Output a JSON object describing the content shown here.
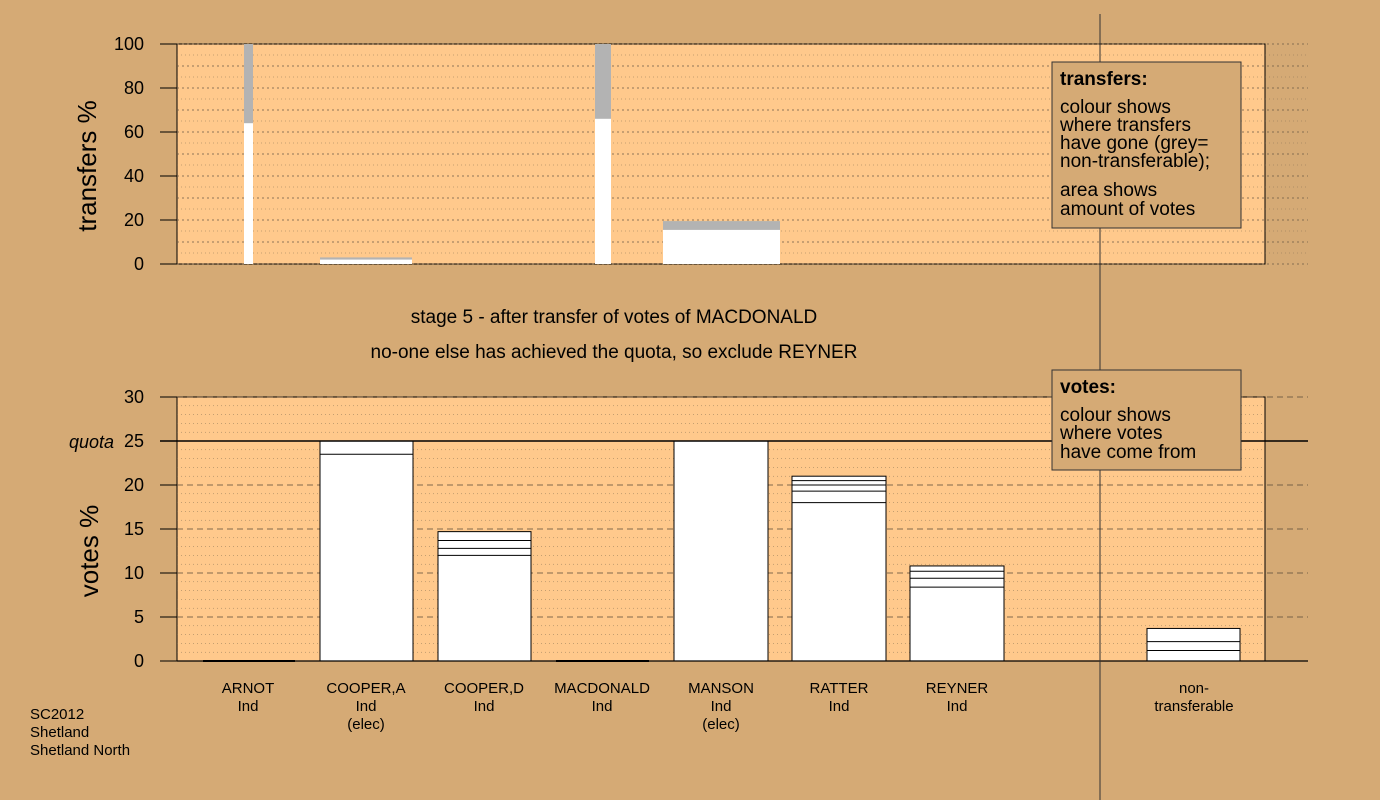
{
  "chart_data": [
    {
      "type": "bar",
      "panel": "transfers",
      "ylabel": "transfers %",
      "ylim": [
        0,
        100
      ],
      "yticks": [
        0,
        20,
        40,
        60,
        80,
        100
      ],
      "bars": [
        {
          "candidate": "ARNOT",
          "total": 100,
          "transferable": 64
        },
        {
          "candidate": "COOPER,A",
          "total": 3,
          "transferable": 2
        },
        {
          "candidate": "MACDONALD",
          "total": 100,
          "transferable": 66
        },
        {
          "candidate": "MANSON",
          "total": 19.5,
          "transferable": 15.5
        }
      ],
      "legend": {
        "title": "transfers:",
        "lines_a": [
          "colour shows",
          "where transfers",
          "have gone (grey=",
          "non-transferable);"
        ],
        "lines_b": [
          "area shows",
          "amount of votes"
        ]
      }
    },
    {
      "type": "bar",
      "panel": "votes",
      "ylabel": "votes %",
      "ylim": [
        0,
        30
      ],
      "yticks": [
        0,
        5,
        10,
        15,
        20,
        25,
        30
      ],
      "quota": 25,
      "quota_label": "quota",
      "candidates": [
        {
          "name": "ARNOT",
          "party": "Ind",
          "status": "",
          "value": 0,
          "segments": []
        },
        {
          "name": "COOPER,A",
          "party": "Ind",
          "status": "(elec)",
          "value": 25,
          "segments": [
            23.5
          ]
        },
        {
          "name": "COOPER,D",
          "party": "Ind",
          "status": "",
          "value": 14.7,
          "segments": [
            12,
            12.8,
            13.7
          ]
        },
        {
          "name": "MACDONALD",
          "party": "Ind",
          "status": "",
          "value": 0,
          "segments": []
        },
        {
          "name": "MANSON",
          "party": "Ind",
          "status": "(elec)",
          "value": 25,
          "segments": []
        },
        {
          "name": "RATTER",
          "party": "Ind",
          "status": "",
          "value": 21,
          "segments": [
            18,
            19.3,
            20,
            20.5
          ]
        },
        {
          "name": "REYNER",
          "party": "Ind",
          "status": "",
          "value": 10.8,
          "segments": [
            8.4,
            9.4,
            10.2
          ]
        },
        {
          "name": "non-",
          "party": "transferable",
          "status": "",
          "value": 3.7,
          "segments": [
            1.2,
            2.2
          ]
        }
      ],
      "legend": {
        "title": "votes:",
        "lines": [
          "colour shows",
          "where votes",
          "have come from"
        ]
      }
    }
  ],
  "stage_text": "stage 5 - after transfer of votes of MACDONALD",
  "action_text": "no-one else has achieved the quota, so exclude REYNER",
  "footer": [
    "SC2012",
    "Shetland",
    "Shetland North"
  ]
}
